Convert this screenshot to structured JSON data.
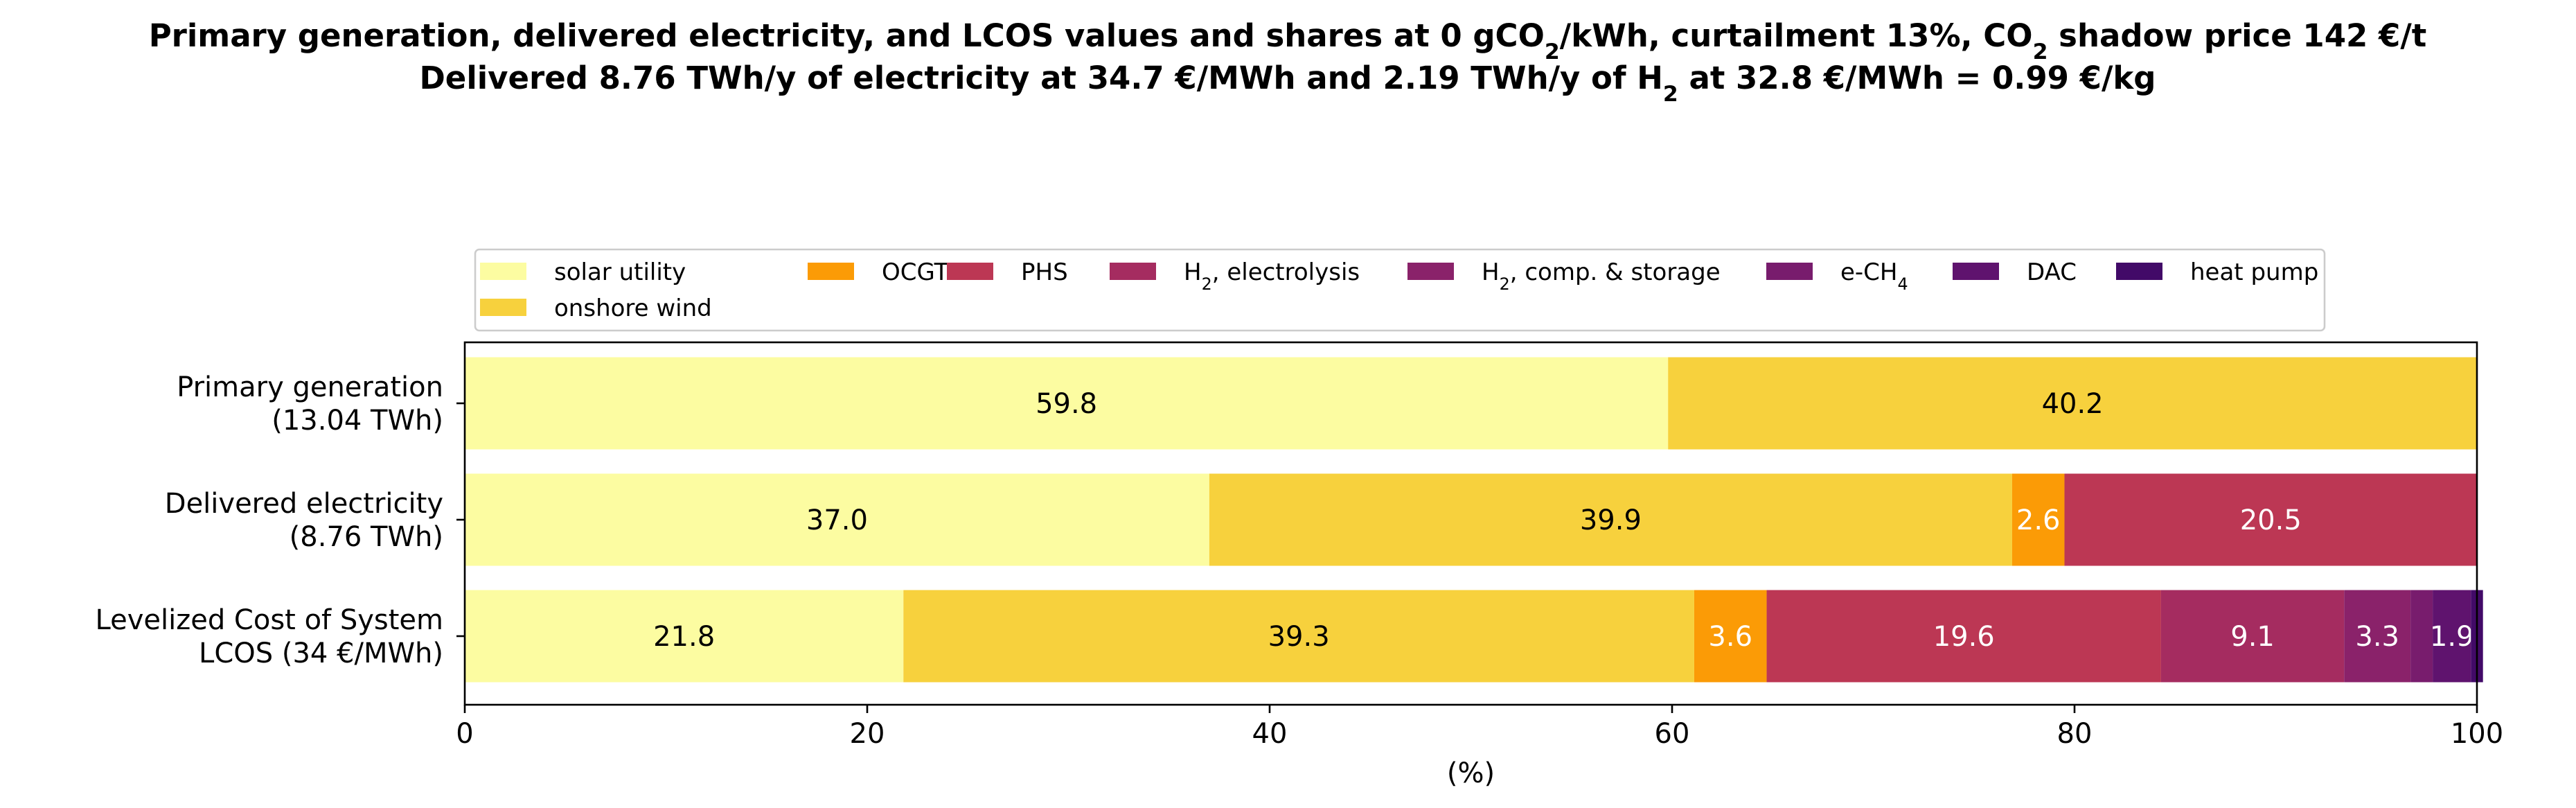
{
  "title": {
    "line1": {
      "segments": [
        {
          "t": "Primary generation, delivered electricity, and LCOS values and shares at 0 gCO"
        },
        {
          "t": "2",
          "sub": true
        },
        {
          "t": "/kWh, curtailment 13%, CO"
        },
        {
          "t": "2",
          "sub": true
        },
        {
          "t": " shadow price 142 €/t"
        }
      ]
    },
    "line2": {
      "segments": [
        {
          "t": "Delivered 8.76 TWh/y of electricity at 34.7 €/MWh and 2.19 TWh/y of H"
        },
        {
          "t": "2",
          "sub": true
        },
        {
          "t": " at 32.8 €/MWh = 0.99 €/kg"
        }
      ]
    }
  },
  "chart_data": {
    "type": "bar",
    "orientation": "horizontal",
    "stacked": true,
    "xlabel": "(%)",
    "xlim": [
      0,
      100
    ],
    "xticks": [
      0,
      20,
      40,
      60,
      80,
      100
    ],
    "grid": false,
    "legend_position": "top",
    "categories": [
      {
        "lines": [
          "Primary generation",
          "(13.04 TWh)"
        ]
      },
      {
        "lines": [
          "Delivered electricity",
          "(8.76 TWh)"
        ]
      },
      {
        "lines": [
          "Levelized Cost of System",
          "LCOS  (34 €/MWh)"
        ]
      }
    ],
    "series": [
      {
        "name": "solar utility",
        "color": "#fcfca1",
        "label_color": "#000000",
        "values": [
          59.8,
          37.0,
          21.8
        ]
      },
      {
        "name": "onshore wind",
        "color": "#f7d13d",
        "label_color": "#000000",
        "values": [
          40.2,
          39.9,
          39.3
        ]
      },
      {
        "name": "OCGT",
        "color": "#fb9b06",
        "label_color": "#ffffff",
        "values": [
          0,
          2.6,
          3.6
        ]
      },
      {
        "name": "PHS",
        "color": "#bc3754",
        "label_color": "#ffffff",
        "values": [
          0,
          20.5,
          19.6
        ]
      },
      {
        "name_segments": [
          {
            "t": "H"
          },
          {
            "t": "2",
            "sub": true
          },
          {
            "t": ", electrolysis"
          }
        ],
        "color": "#a52c60",
        "label_color": "#ffffff",
        "values": [
          0,
          0,
          9.1
        ]
      },
      {
        "name_segments": [
          {
            "t": "H"
          },
          {
            "t": "2",
            "sub": true
          },
          {
            "t": ", comp. & storage"
          }
        ],
        "color": "#8a226a",
        "label_color": "#ffffff",
        "values": [
          0,
          0,
          3.3
        ]
      },
      {
        "name_segments": [
          {
            "t": "e-CH"
          },
          {
            "t": "4",
            "sub": true
          }
        ],
        "color": "#781c6d",
        "label_color": "#ffffff",
        "values": [
          0,
          0,
          1.1
        ]
      },
      {
        "name": "DAC",
        "color": "#5f136e",
        "label_color": "#ffffff",
        "values": [
          0,
          0,
          1.9
        ]
      },
      {
        "name": "heat pump",
        "color": "#420a68",
        "label_color": "#ffffff",
        "values": [
          0,
          0,
          0.6
        ]
      }
    ],
    "min_label_value": 1.5
  }
}
